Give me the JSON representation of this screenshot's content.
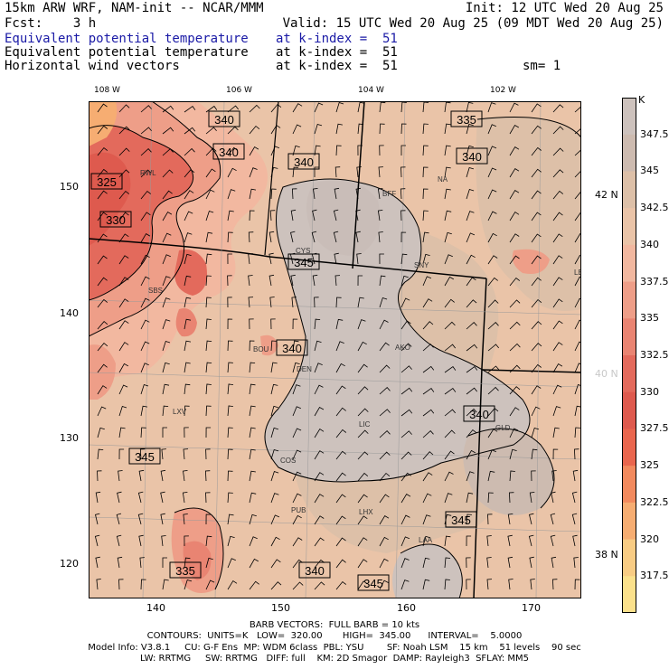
{
  "header": {
    "model_title": "15km ARW WRF, NAM-init -- NCAR/MMM",
    "init": "Init: 12 UTC Wed 20 Aug 25",
    "fcst": "Fcst:    3 h",
    "valid": "Valid: 15 UTC Wed 20 Aug 25 (09 MDT Wed 20 Aug 25)",
    "fields": [
      {
        "name": "Equivalent potential temperature",
        "level": "at k-index =  51",
        "color": "#1a1aa6"
      },
      {
        "name": "Equivalent potential temperature",
        "level": "at k-index =  51",
        "color": "#000000"
      },
      {
        "name": "Horizontal wind vectors",
        "level": "at k-index =  51",
        "color": "#000000"
      }
    ],
    "smoothing": "sm= 1"
  },
  "axes": {
    "lon_top": [
      "108 W",
      "106 W",
      "104 W",
      "102 W"
    ],
    "lat_right": [
      "42 N",
      "40 N",
      "38 N"
    ],
    "x_ticks": [
      "140",
      "150",
      "160",
      "170"
    ],
    "y_ticks": [
      "150",
      "140",
      "130",
      "120"
    ]
  },
  "map": {
    "contour_labels": [
      "340",
      "335",
      "340",
      "340",
      "340",
      "325",
      "330",
      "345",
      "340",
      "345",
      "340",
      "345",
      "335",
      "340",
      "345"
    ],
    "stations": [
      "RWL",
      "BFF",
      "NA",
      "CYS",
      "SNY",
      "SBS",
      "BOU",
      "DEN",
      "AKO",
      "LXV",
      "LIC",
      "GLD",
      "COS",
      "PUB",
      "LHX",
      "LAA",
      "LBF"
    ]
  },
  "colorbar": {
    "unit": "K",
    "labels": [
      "347.5",
      "345",
      "342.5",
      "340",
      "337.5",
      "335",
      "332.5",
      "330",
      "327.5",
      "325",
      "322.5",
      "320",
      "317.5"
    ],
    "colors": [
      "#cdc2bd",
      "#cdbbb0",
      "#ddc0a8",
      "#eac4a8",
      "#f2b8a0",
      "#ee9e88",
      "#e98472",
      "#e36a5c",
      "#de5a4e",
      "#e9664e",
      "#f28a5e",
      "#f6ad72",
      "#f8cc84",
      "#fbe18c"
    ]
  },
  "footer": {
    "barb": "BARB VECTORS:  FULL BARB = 10 kts",
    "contours": "CONTOURS:  UNITS=K   LOW=  320.00       HIGH=  345.00      INTERVAL=    5.0000",
    "model_info": "Model Info: V3.8.1     CU: G-F Ens  MP: WDM 6class  PBL: YSU        SF: Noah LSM    15 km    51 levels    90 sec",
    "model_info2": "LW: RRTMG     SW: RRTMG   DIFF: full    KM: 2D Smagor  DAMP: Rayleigh3  SFLAY: MM5"
  }
}
